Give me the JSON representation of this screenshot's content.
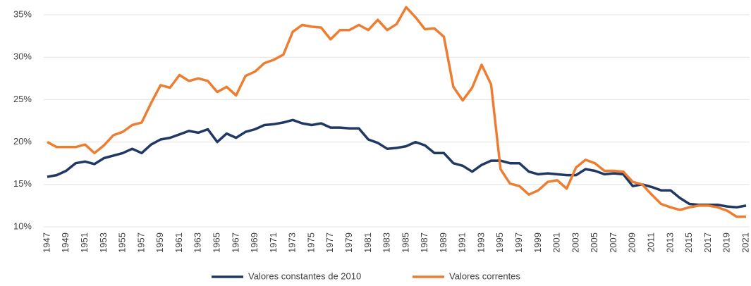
{
  "chart_data": {
    "type": "line",
    "categories": [
      "1947",
      null,
      "1949",
      null,
      "1951",
      null,
      "1953",
      null,
      "1955",
      null,
      "1957",
      null,
      "1959",
      null,
      "1961",
      null,
      "1963",
      null,
      "1965",
      null,
      "1967",
      null,
      "1969",
      null,
      "1971",
      null,
      "1973",
      null,
      "1975",
      null,
      "1977",
      null,
      "1979",
      null,
      "1981",
      null,
      "1983",
      null,
      "1985",
      null,
      "1987",
      null,
      "1989",
      null,
      "1991",
      null,
      "1993",
      null,
      "1995",
      null,
      "1997",
      null,
      "1999",
      null,
      "2001",
      null,
      "2003",
      null,
      "2005",
      null,
      "2007",
      null,
      "2009",
      null,
      "2011",
      null,
      "2013",
      null,
      "2015",
      null,
      "2017",
      null,
      "2019",
      null,
      "2021"
    ],
    "series": [
      {
        "name": "Valores constantes de 2010",
        "color": "#1f3864",
        "values": [
          15.9,
          16.1,
          16.6,
          17.5,
          17.7,
          17.4,
          18.1,
          18.4,
          18.7,
          19.2,
          18.7,
          19.7,
          20.3,
          20.5,
          20.9,
          21.3,
          21.1,
          21.5,
          20.0,
          21.0,
          20.5,
          21.2,
          21.5,
          22.0,
          22.1,
          22.3,
          22.6,
          22.2,
          22.0,
          22.2,
          21.7,
          21.7,
          21.6,
          21.6,
          20.3,
          19.9,
          19.2,
          19.3,
          19.5,
          20.0,
          19.6,
          18.7,
          18.7,
          17.5,
          17.2,
          16.5,
          17.3,
          17.8,
          17.8,
          17.5,
          17.5,
          16.5,
          16.2,
          16.3,
          16.2,
          16.1,
          16.1,
          16.8,
          16.6,
          16.2,
          16.3,
          16.2,
          14.8,
          15.0,
          14.7,
          14.3,
          14.3,
          13.4,
          12.7,
          12.6,
          12.6,
          12.6,
          12.4,
          12.3,
          12.5
        ]
      },
      {
        "name": "Valores correntes",
        "color": "#ed7d31",
        "values": [
          20.0,
          19.4,
          19.4,
          19.4,
          19.7,
          18.7,
          19.6,
          20.8,
          21.2,
          22.0,
          22.3,
          24.6,
          26.7,
          26.4,
          27.9,
          27.2,
          27.5,
          27.2,
          25.9,
          26.5,
          25.5,
          27.8,
          28.3,
          29.3,
          29.7,
          30.3,
          33.0,
          33.8,
          33.6,
          33.5,
          32.1,
          33.2,
          33.2,
          33.8,
          33.2,
          34.4,
          33.2,
          33.9,
          35.9,
          34.7,
          33.3,
          33.4,
          32.4,
          26.5,
          24.9,
          26.4,
          29.1,
          26.8,
          16.8,
          15.1,
          14.8,
          13.8,
          14.3,
          15.3,
          15.5,
          14.5,
          17.0,
          17.9,
          17.5,
          16.6,
          16.6,
          16.5,
          15.3,
          15.0,
          13.8,
          12.7,
          12.3,
          12.0,
          12.3,
          12.5,
          12.5,
          12.3,
          11.9,
          11.2,
          11.2
        ]
      }
    ],
    "ylim": [
      10,
      35
    ],
    "yticks": [
      {
        "value": 10,
        "label": "10%"
      },
      {
        "value": 15,
        "label": "15%"
      },
      {
        "value": 20,
        "label": "20%"
      },
      {
        "value": 25,
        "label": "25%"
      },
      {
        "value": 30,
        "label": "30%"
      },
      {
        "value": 35,
        "label": "35%"
      }
    ],
    "grid": true,
    "legend": "bottom"
  }
}
